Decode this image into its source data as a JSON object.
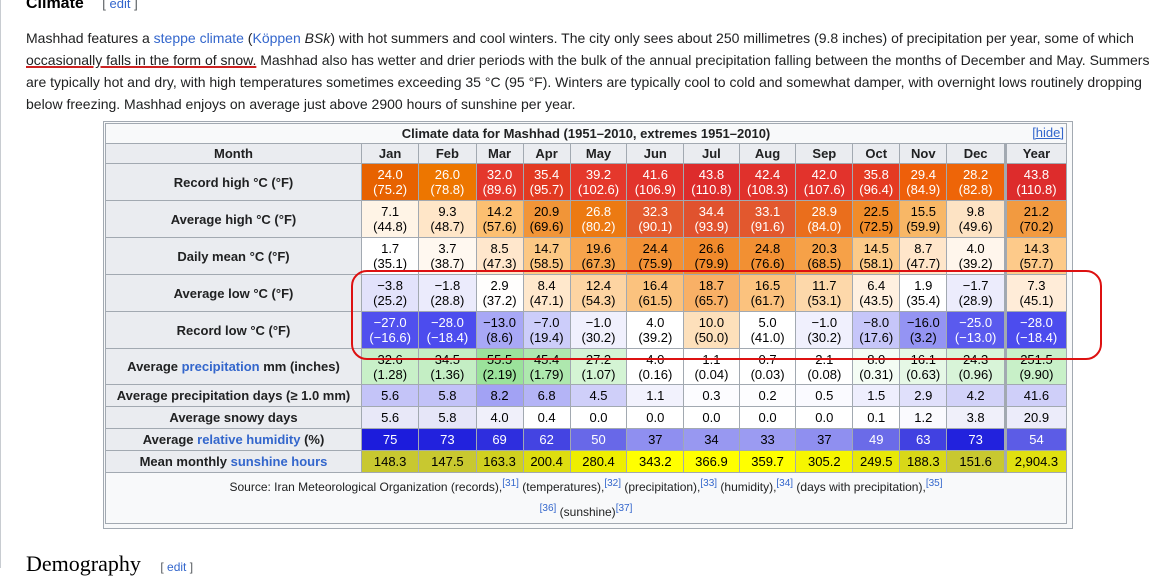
{
  "section": {
    "title": "Climate",
    "edit_label": "edit"
  },
  "intro": {
    "p1": "Mashhad features a ",
    "link_steppe": "steppe climate",
    "p2": " (",
    "link_koppen": "Köppen",
    "p3": " ",
    "bsk": "BSk",
    "p4": ") with hot summers and cool winters. The city only sees about 250 millimetres (9.8 inches) of precipitation per year, some of which ",
    "underlined": "occasionally falls in the form of snow.",
    "p5": " Mashhad also has wetter and drier periods with the bulk of the annual precipitation falling between the months of December and May. Summers are typically hot and dry, with high temperatures sometimes exceeding 35 °C (95 °F). Winters are typically cool to cold and somewhat damper, with overnight lows routinely dropping below freezing. Mashhad enjoys on average just above 2900 hours of sunshine per year."
  },
  "table": {
    "caption": "Climate data for Mashhad (1951–2010, extremes 1951–2010)",
    "hide_label": "[hide]",
    "month_header": "Month",
    "months": [
      "Jan",
      "Feb",
      "Mar",
      "Apr",
      "May",
      "Jun",
      "Jul",
      "Aug",
      "Sep",
      "Oct",
      "Nov",
      "Dec",
      "Year"
    ],
    "rows": [
      {
        "label": "Record high °C (°F)",
        "type": "temp",
        "values": [
          [
            "24.0",
            "(75.2)",
            "#e76200"
          ],
          [
            "26.0",
            "(78.8)",
            "#ed7600"
          ],
          [
            "32.0",
            "(89.6)",
            "#e4382c"
          ],
          [
            "35.4",
            "(95.7)",
            "#e23a22"
          ],
          [
            "39.2",
            "(102.6)",
            "#e5382c"
          ],
          [
            "41.6",
            "(106.9)",
            "#e2342c"
          ],
          [
            "43.8",
            "(110.8)",
            "#dd2c2c"
          ],
          [
            "42.4",
            "(108.3)",
            "#e0312c"
          ],
          [
            "42.0",
            "(107.6)",
            "#e2332c"
          ],
          [
            "35.8",
            "(96.4)",
            "#e43a22"
          ],
          [
            "29.4",
            "(84.9)",
            "#ee5f0a"
          ],
          [
            "28.2",
            "(82.8)",
            "#ee6508"
          ],
          [
            "43.8",
            "(110.8)",
            "#dd2c2c"
          ]
        ]
      },
      {
        "label": "Average high °C (°F)",
        "type": "temp",
        "values": [
          [
            "7.1",
            "(44.8)",
            "#fff4e6"
          ],
          [
            "9.3",
            "(48.7)",
            "#ffe6c8"
          ],
          [
            "14.2",
            "(57.6)",
            "#fcbf71"
          ],
          [
            "20.9",
            "(69.6)",
            "#f19538"
          ],
          [
            "26.8",
            "(80.2)",
            "#ec7a12"
          ],
          [
            "32.3",
            "(90.1)",
            "#e35b2e"
          ],
          [
            "34.4",
            "(93.9)",
            "#e0522e"
          ],
          [
            "33.1",
            "(91.6)",
            "#e2582e"
          ],
          [
            "28.9",
            "(84.0)",
            "#ea6e1c"
          ],
          [
            "22.5",
            "(72.5)",
            "#f08c2a"
          ],
          [
            "15.5",
            "(59.9)",
            "#f8b766"
          ],
          [
            "9.8",
            "(49.6)",
            "#fde3c4"
          ],
          [
            "21.2",
            "(70.2)",
            "#f29a40"
          ]
        ]
      },
      {
        "label": "Daily mean °C (°F)",
        "type": "temp",
        "values": [
          [
            "1.7",
            "(35.1)",
            "#ffffff"
          ],
          [
            "3.7",
            "(38.7)",
            "#fff8f0"
          ],
          [
            "8.5",
            "(47.3)",
            "#ffe7cc"
          ],
          [
            "14.7",
            "(58.5)",
            "#fcc884"
          ],
          [
            "19.6",
            "(67.3)",
            "#f7a44c"
          ],
          [
            "24.4",
            "(75.9)",
            "#f39135"
          ],
          [
            "26.6",
            "(79.9)",
            "#f18a2c"
          ],
          [
            "24.8",
            "(76.6)",
            "#f29033"
          ],
          [
            "20.3",
            "(68.5)",
            "#f6a148"
          ],
          [
            "14.5",
            "(58.1)",
            "#fcca88"
          ],
          [
            "8.7",
            "(47.7)",
            "#ffe6ca"
          ],
          [
            "4.0",
            "(39.2)",
            "#fff6ec"
          ],
          [
            "14.3",
            "(57.7)",
            "#fdca8a"
          ]
        ]
      },
      {
        "label": "Average low °C (°F)",
        "type": "temp",
        "values": [
          [
            "−3.8",
            "(25.2)",
            "#e2e2fb"
          ],
          [
            "−1.8",
            "(28.8)",
            "#ebebfc"
          ],
          [
            "2.9",
            "(37.2)",
            "#fffefd"
          ],
          [
            "8.4",
            "(47.1)",
            "#ffe8cc"
          ],
          [
            "12.4",
            "(54.3)",
            "#fdd4a2"
          ],
          [
            "16.4",
            "(61.5)",
            "#fbc27e"
          ],
          [
            "18.7",
            "(65.7)",
            "#f8b066"
          ],
          [
            "16.5",
            "(61.7)",
            "#fbc27e"
          ],
          [
            "11.7",
            "(53.1)",
            "#fdd8aa"
          ],
          [
            "6.4",
            "(43.5)",
            "#fff0e0"
          ],
          [
            "1.9",
            "(35.4)",
            "#ffffff"
          ],
          [
            "−1.7",
            "(28.9)",
            "#ececfc"
          ],
          [
            "7.3",
            "(45.1)",
            "#ffecd8"
          ]
        ]
      },
      {
        "label": "Record low °C (°F)",
        "type": "temp",
        "values": [
          [
            "−27.0",
            "(−16.6)",
            "#5050ee"
          ],
          [
            "−28.0",
            "(−18.4)",
            "#4c4cee"
          ],
          [
            "−13.0",
            "(8.6)",
            "#a8a8f6"
          ],
          [
            "−7.0",
            "(19.4)",
            "#cccdfa"
          ],
          [
            "−1.0",
            "(30.2)",
            "#f0f0fd"
          ],
          [
            "4.0",
            "(39.2)",
            "#ffffff"
          ],
          [
            "10.0",
            "(50.0)",
            "#fde0bb"
          ],
          [
            "5.0",
            "(41.0)",
            "#ffffff"
          ],
          [
            "−1.0",
            "(30.2)",
            "#f0f0fd"
          ],
          [
            "−8.0",
            "(17.6)",
            "#c6c6f9"
          ],
          [
            "−16.0",
            "(3.2)",
            "#9494f3"
          ],
          [
            "−25.0",
            "(−13.0)",
            "#5a5aee"
          ],
          [
            "−28.0",
            "(−18.4)",
            "#4c4cee"
          ]
        ]
      },
      {
        "label_pre": "Average ",
        "label_link": "precipitation",
        "label_post": " mm (inches)",
        "type": "temp",
        "values": [
          [
            "32.6",
            "(1.28)",
            "#c8f0c8"
          ],
          [
            "34.5",
            "(1.36)",
            "#c4eec4"
          ],
          [
            "55.5",
            "(2.19)",
            "#9be29b"
          ],
          [
            "45.4",
            "(1.79)",
            "#aee8ae"
          ],
          [
            "27.2",
            "(1.07)",
            "#d4f4d4"
          ],
          [
            "4.0",
            "(0.16)",
            "#ffffff"
          ],
          [
            "1.1",
            "(0.04)",
            "#ffffff"
          ],
          [
            "0.7",
            "(0.03)",
            "#ffffff"
          ],
          [
            "2.1",
            "(0.08)",
            "#ffffff"
          ],
          [
            "8.0",
            "(0.31)",
            "#f4fcf4"
          ],
          [
            "16.1",
            "(0.63)",
            "#e6f8e6"
          ],
          [
            "24.3",
            "(0.96)",
            "#d8f4d8"
          ],
          [
            "251.5",
            "(9.90)",
            "#c8f0c8"
          ]
        ]
      },
      {
        "label": "Average precipitation days (≥ 1.0 mm)",
        "type": "single",
        "values": [
          [
            "5.6",
            "#c4c4f8"
          ],
          [
            "5.8",
            "#c2c2f8"
          ],
          [
            "8.2",
            "#a2a2f4"
          ],
          [
            "6.8",
            "#b4b4f6"
          ],
          [
            "4.5",
            "#cfcff9"
          ],
          [
            "1.1",
            "#f2f2fd"
          ],
          [
            "0.3",
            "#fcfcff"
          ],
          [
            "0.2",
            "#fdfdff"
          ],
          [
            "0.5",
            "#fafaff"
          ],
          [
            "1.5",
            "#eeeefd"
          ],
          [
            "2.9",
            "#e0e0fb"
          ],
          [
            "4.2",
            "#d2d2f9"
          ],
          [
            "41.6",
            "#cfcff9"
          ]
        ]
      },
      {
        "label": "Average snowy days",
        "type": "single",
        "values": [
          [
            "5.6",
            "#e8e8f8"
          ],
          [
            "5.8",
            "#e6e6f8"
          ],
          [
            "4.0",
            "#f0f0fa"
          ],
          [
            "0.4",
            "#ffffff"
          ],
          [
            "0.0",
            "#ffffff"
          ],
          [
            "0.0",
            "#ffffff"
          ],
          [
            "0.0",
            "#ffffff"
          ],
          [
            "0.0",
            "#ffffff"
          ],
          [
            "0.0",
            "#ffffff"
          ],
          [
            "0.1",
            "#ffffff"
          ],
          [
            "1.2",
            "#fafafe"
          ],
          [
            "3.8",
            "#f0f0fa"
          ],
          [
            "20.9",
            "#ececfa"
          ]
        ]
      },
      {
        "label_pre": "Average ",
        "label_link": "relative humidity",
        "label_post": " (%)",
        "type": "single",
        "dark": true,
        "values": [
          [
            "75",
            "#1c1cdc"
          ],
          [
            "73",
            "#2222dd"
          ],
          [
            "69",
            "#2e2ede"
          ],
          [
            "62",
            "#4444e2"
          ],
          [
            "50",
            "#6868e8"
          ],
          [
            "37",
            "#8f8ff0"
          ],
          [
            "34",
            "#9898f1"
          ],
          [
            "33",
            "#9b9bf2"
          ],
          [
            "37",
            "#8f8ff0"
          ],
          [
            "49",
            "#6b6be8"
          ],
          [
            "63",
            "#4141e1"
          ],
          [
            "73",
            "#2222dd"
          ],
          [
            "54",
            "#5c5ce6"
          ]
        ]
      },
      {
        "label_pre": "Mean monthly ",
        "label_link": "sunshine hours",
        "label_post": "",
        "type": "single",
        "values": [
          [
            "148.3",
            "#c8c830"
          ],
          [
            "147.5",
            "#c8c830"
          ],
          [
            "163.3",
            "#d0d020"
          ],
          [
            "200.4",
            "#dddd10"
          ],
          [
            "280.4",
            "#eeee00"
          ],
          [
            "343.2",
            "#ffff00"
          ],
          [
            "366.9",
            "#ffff00"
          ],
          [
            "359.7",
            "#ffff00"
          ],
          [
            "305.2",
            "#f6f600"
          ],
          [
            "249.5",
            "#e8e808"
          ],
          [
            "188.3",
            "#d8d818"
          ],
          [
            "151.6",
            "#c8c830"
          ],
          [
            "2,904.3",
            "#e0e010"
          ]
        ]
      }
    ],
    "source": {
      "prefix": "Source: Iran Meteorological Organization (records),",
      "r31": "[31]",
      "t1": " (temperatures),",
      "r32": "[32]",
      "t2": " (precipitation),",
      "r33": "[33]",
      "t3": " (humidity),",
      "r34": "[34]",
      "t4": " (days with precipitation),",
      "r35": "[35]",
      "r36": "[36]",
      "t5": " (sunshine)",
      "r37": "[37]"
    }
  },
  "next_section": {
    "title": "Demography",
    "edit_label": "edit"
  }
}
